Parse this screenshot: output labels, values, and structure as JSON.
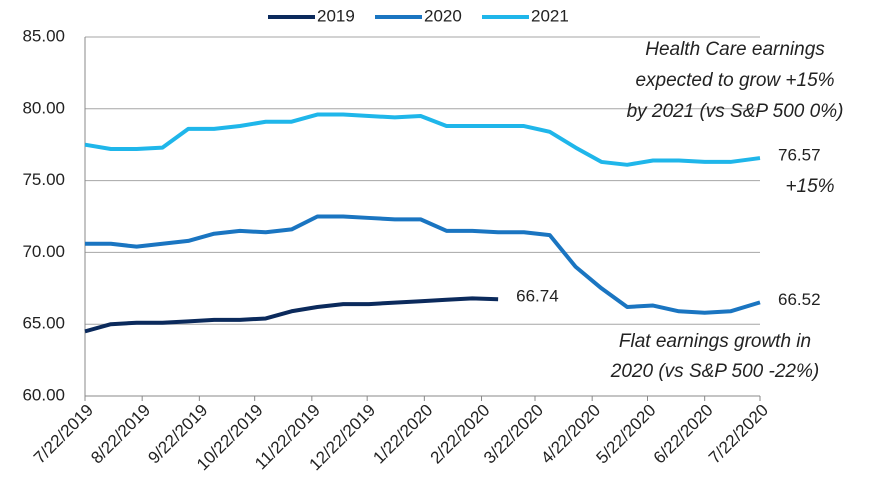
{
  "chart_data": {
    "type": "line",
    "x": [
      "2019-07-22",
      "2019-08-05",
      "2019-08-19",
      "2019-09-02",
      "2019-09-16",
      "2019-09-30",
      "2019-10-14",
      "2019-10-28",
      "2019-11-11",
      "2019-11-25",
      "2019-12-09",
      "2019-12-23",
      "2020-01-06",
      "2020-01-20",
      "2020-02-03",
      "2020-02-17",
      "2020-03-02",
      "2020-03-16",
      "2020-03-30",
      "2020-04-13",
      "2020-04-27",
      "2020-05-11",
      "2020-05-25",
      "2020-06-08",
      "2020-06-22",
      "2020-07-06",
      "2020-07-22"
    ],
    "series": [
      {
        "name": "2019",
        "color": "#0b2a5c",
        "values": [
          64.5,
          65.0,
          65.1,
          65.1,
          65.2,
          65.3,
          65.3,
          65.4,
          65.9,
          66.2,
          66.4,
          66.4,
          66.5,
          66.6,
          66.7,
          66.8,
          66.74,
          null,
          null,
          null,
          null,
          null,
          null,
          null,
          null,
          null,
          null
        ]
      },
      {
        "name": "2020",
        "color": "#1a75c1",
        "values": [
          70.6,
          70.6,
          70.4,
          70.6,
          70.8,
          71.3,
          71.5,
          71.4,
          71.6,
          72.5,
          72.5,
          72.4,
          72.3,
          72.3,
          71.5,
          71.5,
          71.4,
          71.4,
          71.2,
          69.0,
          67.5,
          66.2,
          66.3,
          65.9,
          65.8,
          65.9,
          66.52
        ]
      },
      {
        "name": "2021",
        "color": "#1fb6ea",
        "values": [
          77.5,
          77.2,
          77.2,
          77.3,
          78.6,
          78.6,
          78.8,
          79.1,
          79.1,
          79.6,
          79.6,
          79.5,
          79.4,
          79.5,
          78.8,
          78.8,
          78.8,
          78.8,
          78.4,
          77.3,
          76.3,
          76.1,
          76.4,
          76.4,
          76.3,
          76.3,
          76.57
        ]
      }
    ],
    "xlim": [
      "2019-07-22",
      "2020-07-22"
    ],
    "xticks": [
      {
        "value": "2019-07-22",
        "label": "7/22/2019"
      },
      {
        "value": "2019-08-22",
        "label": "8/22/2019"
      },
      {
        "value": "2019-09-22",
        "label": "9/22/2019"
      },
      {
        "value": "2019-10-22",
        "label": "10/22/2019"
      },
      {
        "value": "2019-11-22",
        "label": "11/22/2019"
      },
      {
        "value": "2019-12-22",
        "label": "12/22/2019"
      },
      {
        "value": "2020-01-22",
        "label": "1/22/2020"
      },
      {
        "value": "2020-02-22",
        "label": "2/22/2020"
      },
      {
        "value": "2020-03-22",
        "label": "3/22/2020"
      },
      {
        "value": "2020-04-22",
        "label": "4/22/2020"
      },
      {
        "value": "2020-05-22",
        "label": "5/22/2020"
      },
      {
        "value": "2020-06-22",
        "label": "6/22/2020"
      },
      {
        "value": "2020-07-22",
        "label": "7/22/2020"
      }
    ],
    "ylim": [
      60,
      85
    ],
    "yticks": [
      {
        "value": 60,
        "label": "60.00"
      },
      {
        "value": 65,
        "label": "65.00"
      },
      {
        "value": 70,
        "label": "70.00"
      },
      {
        "value": 75,
        "label": "75.00"
      },
      {
        "value": 80,
        "label": "80.00"
      },
      {
        "value": 85,
        "label": "85.00"
      }
    ],
    "grid": true,
    "legend": "top",
    "annotations": [
      {
        "lines": [
          "Health Care earnings",
          "expected to grow +15%",
          "by 2021 (vs S&P 500 0%)"
        ]
      },
      {
        "lines": [
          "+15%"
        ]
      },
      {
        "lines": [
          "Flat earnings growth in",
          "2020 (vs S&P 500 -22%)"
        ]
      }
    ]
  }
}
